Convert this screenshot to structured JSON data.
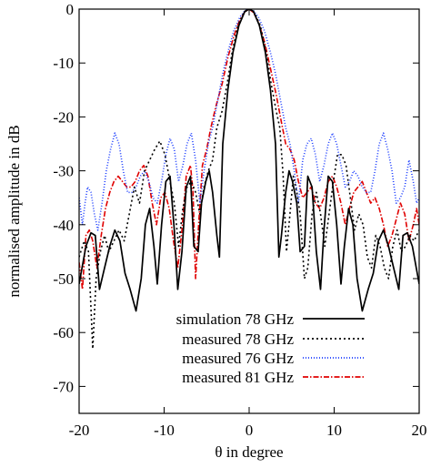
{
  "chart_data": {
    "type": "line",
    "title": "",
    "xlabel": "θ in degree",
    "ylabel": "normalised amplitude in dB",
    "xlim": [
      -20,
      20
    ],
    "ylim": [
      -75,
      0
    ],
    "xticks": [
      -20,
      -10,
      0,
      10,
      20
    ],
    "yticks": [
      0,
      -10,
      -20,
      -30,
      -40,
      -50,
      -60,
      -70
    ],
    "xtick_labels": [
      "-20",
      "-10",
      "0",
      "10",
      "20"
    ],
    "ytick_labels": [
      "0",
      "-10",
      "-20",
      "-30",
      "-40",
      "-50",
      "-60",
      "-70"
    ],
    "grid": false,
    "legend": "bottom-center",
    "series": [
      {
        "name": "simulation 78 GHz",
        "color": "#000000",
        "dash": "solid",
        "points": [
          [
            -20,
            -51
          ],
          [
            -19.2,
            -44
          ],
          [
            -18.6,
            -41.5
          ],
          [
            -18.1,
            -42
          ],
          [
            -17.6,
            -52
          ],
          [
            -17,
            -48
          ],
          [
            -16.4,
            -44
          ],
          [
            -15.8,
            -41
          ],
          [
            -15.2,
            -43
          ],
          [
            -14.6,
            -49
          ],
          [
            -14,
            -52
          ],
          [
            -13.3,
            -56
          ],
          [
            -12.7,
            -50
          ],
          [
            -12.2,
            -40
          ],
          [
            -11.7,
            -37
          ],
          [
            -11.2,
            -44
          ],
          [
            -10.8,
            -51
          ],
          [
            -10.3,
            -40
          ],
          [
            -9.8,
            -32
          ],
          [
            -9.3,
            -31
          ],
          [
            -8.8,
            -41
          ],
          [
            -8.4,
            -52
          ],
          [
            -7.9,
            -45
          ],
          [
            -7.4,
            -33
          ],
          [
            -6.9,
            -31
          ],
          [
            -6.5,
            -44
          ],
          [
            -6.0,
            -45
          ],
          [
            -5.6,
            -36
          ],
          [
            -5.1,
            -32
          ],
          [
            -4.7,
            -30
          ],
          [
            -4.3,
            -34
          ],
          [
            -3.8,
            -42
          ],
          [
            -3.5,
            -46
          ],
          [
            -3.1,
            -25
          ],
          [
            -2.5,
            -15
          ],
          [
            -1.9,
            -8
          ],
          [
            -1.2,
            -3
          ],
          [
            -0.5,
            -0.4
          ],
          [
            0,
            0
          ],
          [
            0.5,
            -0.4
          ],
          [
            1.2,
            -3
          ],
          [
            1.9,
            -8
          ],
          [
            2.5,
            -15
          ],
          [
            3.1,
            -25
          ],
          [
            3.5,
            -46
          ],
          [
            3.8,
            -42
          ],
          [
            4.3,
            -34
          ],
          [
            4.7,
            -30
          ],
          [
            5.1,
            -32
          ],
          [
            5.6,
            -36
          ],
          [
            6.0,
            -45
          ],
          [
            6.5,
            -44
          ],
          [
            6.9,
            -31
          ],
          [
            7.4,
            -33
          ],
          [
            7.9,
            -45
          ],
          [
            8.4,
            -52
          ],
          [
            8.8,
            -41
          ],
          [
            9.3,
            -31
          ],
          [
            9.8,
            -32
          ],
          [
            10.3,
            -40
          ],
          [
            10.8,
            -51
          ],
          [
            11.2,
            -44
          ],
          [
            11.7,
            -37
          ],
          [
            12.2,
            -40
          ],
          [
            12.7,
            -50
          ],
          [
            13.3,
            -56
          ],
          [
            14,
            -52
          ],
          [
            14.6,
            -49
          ],
          [
            15.2,
            -43
          ],
          [
            15.8,
            -41
          ],
          [
            16.4,
            -44
          ],
          [
            17,
            -48
          ],
          [
            17.6,
            -52
          ],
          [
            18.1,
            -42
          ],
          [
            18.6,
            -41.5
          ],
          [
            19.2,
            -44
          ],
          [
            20,
            -51
          ]
        ]
      },
      {
        "name": "measured 78 GHz",
        "color": "#000000",
        "dash": "2,3",
        "points": [
          [
            -20,
            -46
          ],
          [
            -19.4,
            -43
          ],
          [
            -18.9,
            -45
          ],
          [
            -18.4,
            -63
          ],
          [
            -18.0,
            -50
          ],
          [
            -17.5,
            -45
          ],
          [
            -17.0,
            -42
          ],
          [
            -16.5,
            -45
          ],
          [
            -15.9,
            -43
          ],
          [
            -15.3,
            -41
          ],
          [
            -14.7,
            -43
          ],
          [
            -14.1,
            -38
          ],
          [
            -13.5,
            -33
          ],
          [
            -12.9,
            -36
          ],
          [
            -12.3,
            -30
          ],
          [
            -11.7,
            -28
          ],
          [
            -11.1,
            -26
          ],
          [
            -10.5,
            -24.5
          ],
          [
            -9.9,
            -27
          ],
          [
            -9.3,
            -32
          ],
          [
            -8.8,
            -36
          ],
          [
            -8.3,
            -44
          ],
          [
            -7.8,
            -37
          ],
          [
            -7.3,
            -33
          ],
          [
            -6.8,
            -32
          ],
          [
            -6.3,
            -34
          ],
          [
            -5.8,
            -38
          ],
          [
            -5.3,
            -33
          ],
          [
            -4.8,
            -30
          ],
          [
            -4.3,
            -28
          ],
          [
            -3.8,
            -22
          ],
          [
            -3.2,
            -19
          ],
          [
            -2.6,
            -14
          ],
          [
            -2,
            -8
          ],
          [
            -1.3,
            -3
          ],
          [
            -0.6,
            -0.6
          ],
          [
            0,
            0
          ],
          [
            0.6,
            -0.6
          ],
          [
            1.3,
            -3
          ],
          [
            2,
            -8
          ],
          [
            2.6,
            -14
          ],
          [
            3.2,
            -19
          ],
          [
            3.6,
            -22
          ],
          [
            4.0,
            -31
          ],
          [
            4.4,
            -45
          ],
          [
            4.8,
            -38
          ],
          [
            5.2,
            -31
          ],
          [
            5.6,
            -34
          ],
          [
            6.0,
            -38
          ],
          [
            6.5,
            -50
          ],
          [
            6.9,
            -48
          ],
          [
            7.4,
            -38
          ],
          [
            7.9,
            -34
          ],
          [
            8.4,
            -38
          ],
          [
            8.9,
            -44
          ],
          [
            9.4,
            -38
          ],
          [
            9.9,
            -32
          ],
          [
            10.4,
            -27
          ],
          [
            10.9,
            -27
          ],
          [
            11.4,
            -29
          ],
          [
            11.9,
            -35
          ],
          [
            12.4,
            -41
          ],
          [
            12.9,
            -38
          ],
          [
            13.4,
            -40
          ],
          [
            13.9,
            -46
          ],
          [
            14.4,
            -48
          ],
          [
            14.9,
            -42
          ],
          [
            15.4,
            -44
          ],
          [
            15.9,
            -48
          ],
          [
            16.4,
            -50
          ],
          [
            16.9,
            -44
          ],
          [
            17.4,
            -41
          ],
          [
            17.9,
            -45
          ],
          [
            18.4,
            -44
          ],
          [
            18.9,
            -42
          ],
          [
            19.4,
            -43
          ],
          [
            20,
            -41
          ]
        ]
      },
      {
        "name": "measured 76 GHz",
        "color": "#1a3cff",
        "dash": "1,2",
        "points": [
          [
            -20,
            -35
          ],
          [
            -19.6,
            -40
          ],
          [
            -19.3,
            -36
          ],
          [
            -19.0,
            -33
          ],
          [
            -18.6,
            -34
          ],
          [
            -18.2,
            -38
          ],
          [
            -17.8,
            -41
          ],
          [
            -17.3,
            -36
          ],
          [
            -16.8,
            -30
          ],
          [
            -16.3,
            -26
          ],
          [
            -15.8,
            -23
          ],
          [
            -15.3,
            -25
          ],
          [
            -14.8,
            -30
          ],
          [
            -14.3,
            -34
          ],
          [
            -13.8,
            -34
          ],
          [
            -13.3,
            -33
          ],
          [
            -12.8,
            -31
          ],
          [
            -12.3,
            -30
          ],
          [
            -11.8,
            -32
          ],
          [
            -11.3,
            -35
          ],
          [
            -10.8,
            -36
          ],
          [
            -10.3,
            -32
          ],
          [
            -9.8,
            -27
          ],
          [
            -9.3,
            -24
          ],
          [
            -8.8,
            -26
          ],
          [
            -8.3,
            -32
          ],
          [
            -7.8,
            -29
          ],
          [
            -7.3,
            -25
          ],
          [
            -6.8,
            -23
          ],
          [
            -6.3,
            -28
          ],
          [
            -5.8,
            -36
          ],
          [
            -5.3,
            -30
          ],
          [
            -4.8,
            -25
          ],
          [
            -4.3,
            -22
          ],
          [
            -3.7,
            -17
          ],
          [
            -3.1,
            -12
          ],
          [
            -2.5,
            -8
          ],
          [
            -1.8,
            -4
          ],
          [
            -1.1,
            -1.5
          ],
          [
            -0.5,
            -0.3
          ],
          [
            0,
            0
          ],
          [
            0.5,
            -0.3
          ],
          [
            1.1,
            -1.5
          ],
          [
            1.8,
            -4
          ],
          [
            2.5,
            -8
          ],
          [
            3.1,
            -12
          ],
          [
            3.7,
            -17
          ],
          [
            4.3,
            -22
          ],
          [
            4.8,
            -25
          ],
          [
            5.3,
            -30
          ],
          [
            5.8,
            -36
          ],
          [
            6.3,
            -28
          ],
          [
            6.8,
            -25
          ],
          [
            7.3,
            -24
          ],
          [
            7.8,
            -27
          ],
          [
            8.3,
            -32
          ],
          [
            8.8,
            -29
          ],
          [
            9.3,
            -25
          ],
          [
            9.8,
            -23
          ],
          [
            10.3,
            -25
          ],
          [
            10.8,
            -29
          ],
          [
            11.3,
            -33
          ],
          [
            11.8,
            -32
          ],
          [
            12.3,
            -30
          ],
          [
            12.8,
            -31
          ],
          [
            13.3,
            -33
          ],
          [
            13.8,
            -34
          ],
          [
            14.3,
            -34
          ],
          [
            14.8,
            -30
          ],
          [
            15.3,
            -25
          ],
          [
            15.8,
            -23
          ],
          [
            16.3,
            -26
          ],
          [
            16.8,
            -30
          ],
          [
            17.3,
            -36
          ],
          [
            17.8,
            -35
          ],
          [
            18.3,
            -33
          ],
          [
            18.8,
            -28
          ],
          [
            19.3,
            -32
          ],
          [
            19.7,
            -36
          ],
          [
            20,
            -35
          ]
        ]
      },
      {
        "name": "measured 81 GHz",
        "color": "#e00000",
        "dash": "6,2,1.5,2",
        "points": [
          [
            -20,
            -47
          ],
          [
            -19.6,
            -52
          ],
          [
            -19.2,
            -42
          ],
          [
            -18.8,
            -41
          ],
          [
            -18.4,
            -43
          ],
          [
            -17.9,
            -48
          ],
          [
            -17.4,
            -42
          ],
          [
            -16.9,
            -37
          ],
          [
            -16.4,
            -34
          ],
          [
            -15.9,
            -32
          ],
          [
            -15.4,
            -31
          ],
          [
            -14.9,
            -32
          ],
          [
            -14.4,
            -33
          ],
          [
            -13.9,
            -33
          ],
          [
            -13.4,
            -32
          ],
          [
            -12.9,
            -30
          ],
          [
            -12.4,
            -29
          ],
          [
            -11.9,
            -31
          ],
          [
            -11.4,
            -36
          ],
          [
            -10.9,
            -40
          ],
          [
            -10.4,
            -35
          ],
          [
            -9.9,
            -34
          ],
          [
            -9.4,
            -37
          ],
          [
            -8.9,
            -43
          ],
          [
            -8.4,
            -48
          ],
          [
            -7.9,
            -41
          ],
          [
            -7.4,
            -31
          ],
          [
            -6.9,
            -29
          ],
          [
            -6.6,
            -34
          ],
          [
            -6.3,
            -50
          ],
          [
            -5.9,
            -39
          ],
          [
            -5.5,
            -29
          ],
          [
            -5.0,
            -26
          ],
          [
            -4.5,
            -22
          ],
          [
            -3.9,
            -18
          ],
          [
            -3.2,
            -14
          ],
          [
            -2.5,
            -9
          ],
          [
            -1.8,
            -5
          ],
          [
            -1.1,
            -2
          ],
          [
            -0.5,
            -0.5
          ],
          [
            0,
            0
          ],
          [
            0.5,
            -0.6
          ],
          [
            1.1,
            -2.5
          ],
          [
            1.8,
            -6
          ],
          [
            2.5,
            -11
          ],
          [
            3.2,
            -16
          ],
          [
            3.8,
            -21
          ],
          [
            4.3,
            -25
          ],
          [
            4.8,
            -26
          ],
          [
            5.3,
            -28
          ],
          [
            5.8,
            -32
          ],
          [
            6.3,
            -35
          ],
          [
            6.8,
            -34
          ],
          [
            7.3,
            -33
          ],
          [
            7.8,
            -36
          ],
          [
            8.3,
            -37
          ],
          [
            8.8,
            -35
          ],
          [
            9.3,
            -32
          ],
          [
            9.8,
            -31
          ],
          [
            10.3,
            -33
          ],
          [
            10.8,
            -36
          ],
          [
            11.3,
            -40
          ],
          [
            11.8,
            -37
          ],
          [
            12.3,
            -34
          ],
          [
            12.8,
            -33
          ],
          [
            13.3,
            -32
          ],
          [
            13.8,
            -34
          ],
          [
            14.3,
            -36
          ],
          [
            14.8,
            -35
          ],
          [
            15.3,
            -37
          ],
          [
            15.8,
            -40
          ],
          [
            16.3,
            -44
          ],
          [
            16.8,
            -42
          ],
          [
            17.3,
            -39
          ],
          [
            17.8,
            -36
          ],
          [
            18.3,
            -38
          ],
          [
            18.8,
            -43
          ],
          [
            19.3,
            -40
          ],
          [
            19.7,
            -37
          ],
          [
            20,
            -40
          ]
        ]
      }
    ]
  }
}
